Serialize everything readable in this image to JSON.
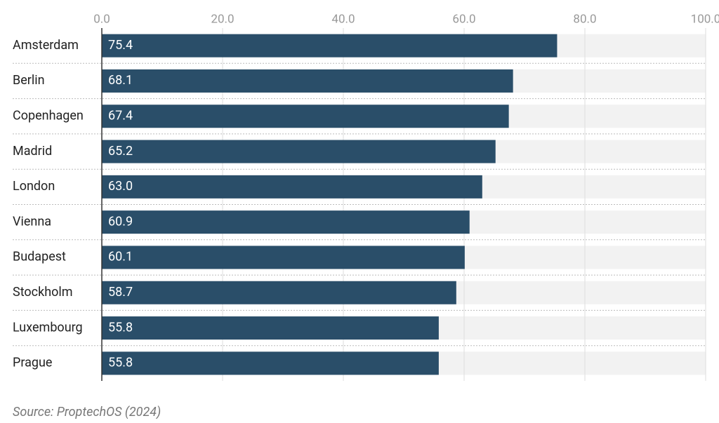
{
  "chart_data": {
    "type": "bar",
    "orientation": "horizontal",
    "categories": [
      "Amsterdam",
      "Berlin",
      "Copenhagen",
      "Madrid",
      "London",
      "Vienna",
      "Budapest",
      "Stockholm",
      "Luxembourg",
      "Prague"
    ],
    "values": [
      75.4,
      68.1,
      67.4,
      65.2,
      63.0,
      60.9,
      60.1,
      58.7,
      55.8,
      55.8
    ],
    "value_labels": [
      "75.4",
      "68.1",
      "67.4",
      "65.2",
      "63.0",
      "60.9",
      "60.1",
      "58.7",
      "55.8",
      "55.8"
    ],
    "color": "#2a4e69",
    "xlim": [
      0,
      100
    ],
    "xticks": [
      {
        "value": 0,
        "label": "0.0"
      },
      {
        "value": 20,
        "label": "20.0"
      },
      {
        "value": 40,
        "label": "40.0"
      },
      {
        "value": 60,
        "label": "60.0"
      },
      {
        "value": 80,
        "label": "80.0"
      },
      {
        "value": 100,
        "label": "100.0"
      }
    ],
    "grid": true,
    "source": "Source: ProptechOS (2024)"
  }
}
